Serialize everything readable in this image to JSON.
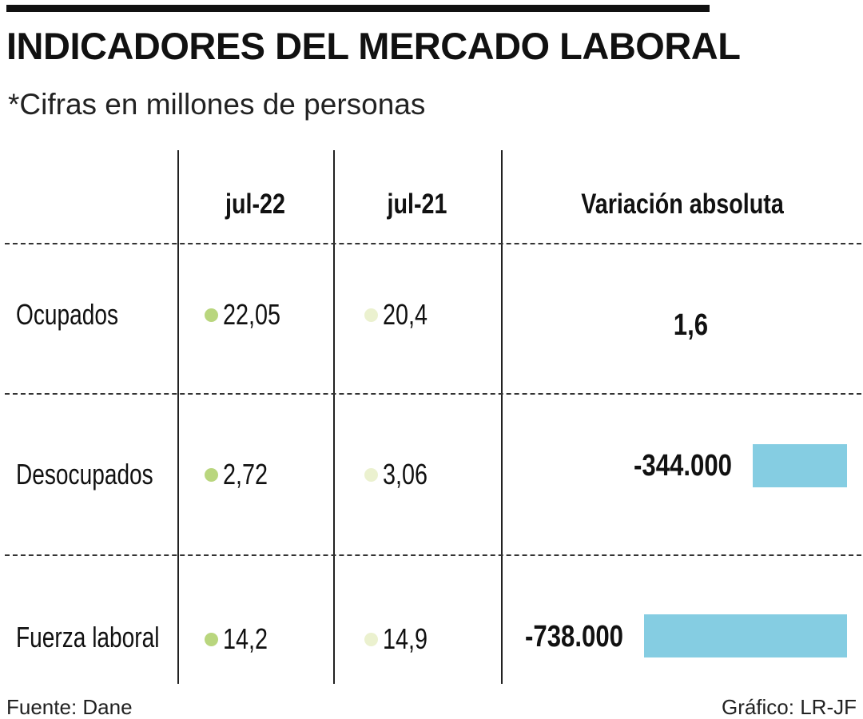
{
  "title": "INDICADORES DEL MERCADO LABORAL",
  "subtitle": "*Cifras en millones de personas",
  "colors": {
    "jul22_dot": "#b9d67e",
    "jul21_dot": "#ebf1cf",
    "bar": "#85cde2"
  },
  "chart_data": {
    "type": "table",
    "columns": [
      "jul-22",
      "jul-21",
      "Variación absoluta"
    ],
    "rows": [
      {
        "label": "Ocupados",
        "jul22": "22,05",
        "jul21": "20,4",
        "variation": "1,6",
        "variation_value": 1600000
      },
      {
        "label": "Desocupados",
        "jul22": "2,72",
        "jul21": "3,06",
        "variation": "-344.000",
        "variation_value": -344000
      },
      {
        "label": "Fuerza laboral",
        "jul22": "14,2",
        "jul21": "14,9",
        "variation": "-738.000",
        "variation_value": -738000
      }
    ],
    "bar_scale_max": 738000
  },
  "footer": {
    "source": "Fuente: Dane",
    "credit": "Gráfico: LR-JF"
  }
}
